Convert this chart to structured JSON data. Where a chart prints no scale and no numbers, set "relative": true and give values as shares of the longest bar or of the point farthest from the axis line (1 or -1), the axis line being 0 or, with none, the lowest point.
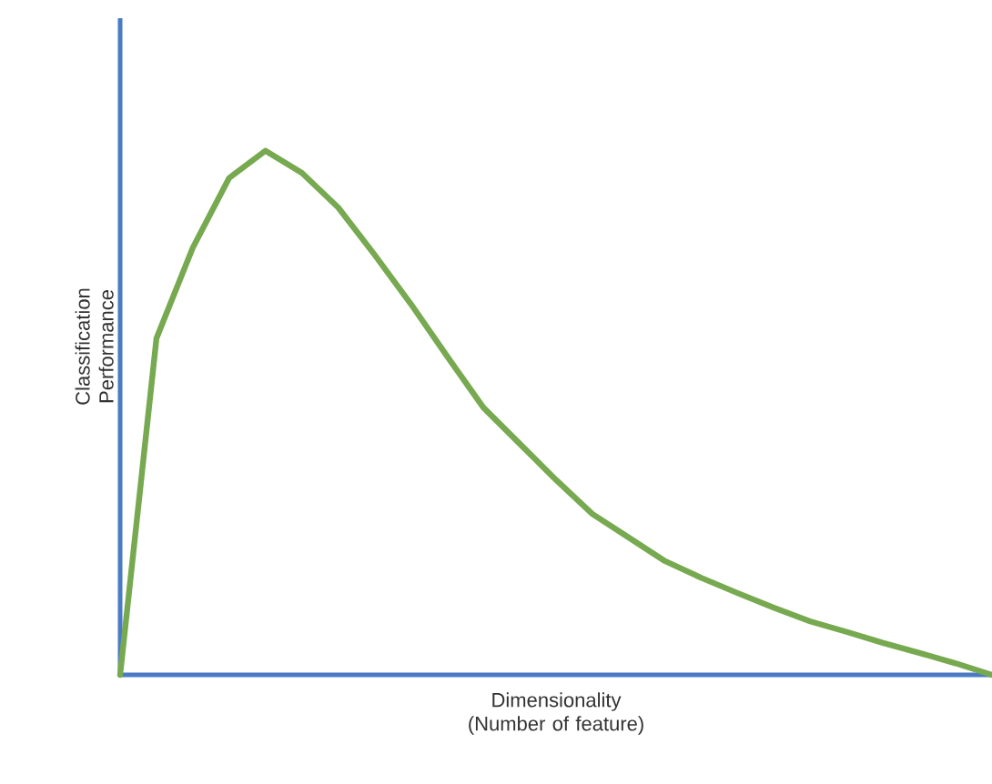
{
  "chart_data": {
    "type": "line",
    "relative": true,
    "xlabel": "Dimensionality (Number of feature)",
    "ylabel": "Classification Performance",
    "categories": [
      null,
      null,
      null,
      null,
      null,
      null,
      null,
      null,
      null,
      null,
      null,
      null,
      null,
      null,
      null,
      null,
      null,
      null,
      null,
      null,
      null,
      null,
      null,
      null,
      null
    ],
    "series": [
      {
        "color": "#77a950",
        "values": [
          0,
          0.642,
          0.815,
          0.948,
          1,
          0.958,
          0.892,
          0.802,
          0.708,
          0.608,
          0.51,
          0.441,
          0.372,
          0.307,
          0.262,
          0.217,
          0.185,
          0.156,
          0.128,
          0.102,
          0.082,
          0.061,
          0.042,
          0.022,
          0
        ]
      }
    ],
    "tick_labels": false,
    "marker": "none",
    "line_style": "solid"
  }
}
